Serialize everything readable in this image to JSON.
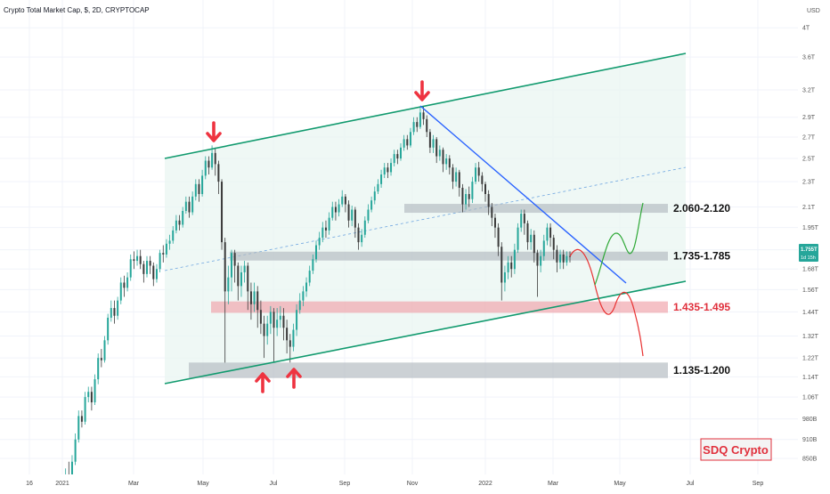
{
  "header": {
    "title": "Crypto Total Market Cap, $, 2D, CRYPTOCAP",
    "currency": "USD"
  },
  "chart_data": {
    "type": "candlestick",
    "title": "Crypto Total Market Cap, $, 2D, CRYPTOCAP",
    "y_scale": "log",
    "ylim": [
      0.76,
      4.2
    ],
    "y_unit": "T",
    "y_ticks": [
      {
        "label": "4T",
        "value": 4.0
      },
      {
        "label": "3.6T",
        "value": 3.6
      },
      {
        "label": "3.2T",
        "value": 3.2
      },
      {
        "label": "2.9T",
        "value": 2.9
      },
      {
        "label": "2.7T",
        "value": 2.7
      },
      {
        "label": "2.5T",
        "value": 2.5
      },
      {
        "label": "2.3T",
        "value": 2.3
      },
      {
        "label": "2.1T",
        "value": 2.1
      },
      {
        "label": "1.95T",
        "value": 1.95
      },
      {
        "label": "1.8T",
        "value": 1.8
      },
      {
        "label": "1.68T",
        "value": 1.68
      },
      {
        "label": "1.56T",
        "value": 1.56
      },
      {
        "label": "1.44T",
        "value": 1.44
      },
      {
        "label": "1.32T",
        "value": 1.32
      },
      {
        "label": "1.22T",
        "value": 1.22
      },
      {
        "label": "1.14T",
        "value": 1.14
      },
      {
        "label": "1.06T",
        "value": 1.06
      },
      {
        "label": "980B",
        "value": 0.98
      },
      {
        "label": "910B",
        "value": 0.91
      },
      {
        "label": "850B",
        "value": 0.85
      },
      {
        "label": "794B",
        "value": 0.794
      }
    ],
    "x_ticks": [
      "16",
      "2021",
      "Mar",
      "May",
      "Jul",
      "Sep",
      "Nov",
      "2022",
      "Mar",
      "May",
      "Jul",
      "Sep"
    ],
    "last_price": "1.755T",
    "countdown": "1d 15h",
    "zones": [
      {
        "label": "2.060-2.120",
        "low": 2.06,
        "high": 2.12,
        "color": "#b0b8bf",
        "label_color": "#111111"
      },
      {
        "label": "1.735-1.785",
        "low": 1.735,
        "high": 1.785,
        "color": "#b0b8bf",
        "label_color": "#111111"
      },
      {
        "label": "1.435-1.495",
        "low": 1.435,
        "high": 1.495,
        "color": "#f0a0a8",
        "label_color": "#e0303c"
      },
      {
        "label": "1.135-1.200",
        "low": 1.135,
        "high": 1.2,
        "color": "#b0b8bf",
        "label_color": "#111111"
      }
    ],
    "colors": {
      "up": "#26a69a",
      "down": "#3a3a3a",
      "channel": "#119a6e",
      "channel_fill": "#e9f5f2",
      "trendline": "#2962ff",
      "arrow": "#ee3340",
      "bull_path": "#2ea836",
      "bear_path": "#e83030",
      "price_badge": "#26a69a"
    },
    "candles": [
      [
        0.76,
        0.76,
        0.8,
        0.73
      ],
      [
        0.76,
        0.8,
        0.82,
        0.75
      ],
      [
        0.8,
        0.79,
        0.84,
        0.78
      ],
      [
        0.79,
        0.84,
        0.86,
        0.78
      ],
      [
        0.84,
        0.91,
        0.93,
        0.83
      ],
      [
        0.91,
        0.99,
        1.01,
        0.9
      ],
      [
        0.99,
        0.97,
        1.01,
        0.95
      ],
      [
        0.97,
        1.06,
        1.08,
        0.96
      ],
      [
        1.06,
        1.08,
        1.1,
        1.04
      ],
      [
        1.08,
        1.04,
        1.1,
        1.01
      ],
      [
        1.04,
        1.13,
        1.15,
        1.03
      ],
      [
        1.13,
        1.22,
        1.24,
        1.11
      ],
      [
        1.22,
        1.21,
        1.26,
        1.18
      ],
      [
        1.21,
        1.3,
        1.32,
        1.2
      ],
      [
        1.3,
        1.41,
        1.43,
        1.28
      ],
      [
        1.41,
        1.46,
        1.5,
        1.39
      ],
      [
        1.46,
        1.42,
        1.5,
        1.38
      ],
      [
        1.42,
        1.5,
        1.52,
        1.4
      ],
      [
        1.5,
        1.6,
        1.63,
        1.48
      ],
      [
        1.6,
        1.57,
        1.64,
        1.52
      ],
      [
        1.57,
        1.63,
        1.66,
        1.55
      ],
      [
        1.63,
        1.74,
        1.77,
        1.61
      ],
      [
        1.74,
        1.73,
        1.79,
        1.68
      ],
      [
        1.73,
        1.76,
        1.8,
        1.7
      ],
      [
        1.76,
        1.71,
        1.8,
        1.68
      ],
      [
        1.71,
        1.65,
        1.73,
        1.6
      ],
      [
        1.65,
        1.73,
        1.76,
        1.63
      ],
      [
        1.73,
        1.7,
        1.76,
        1.65
      ],
      [
        1.7,
        1.62,
        1.72,
        1.58
      ],
      [
        1.62,
        1.68,
        1.71,
        1.6
      ],
      [
        1.68,
        1.78,
        1.8,
        1.66
      ],
      [
        1.78,
        1.77,
        1.83,
        1.72
      ],
      [
        1.77,
        1.84,
        1.87,
        1.75
      ],
      [
        1.84,
        1.86,
        1.9,
        1.8
      ],
      [
        1.86,
        1.93,
        1.96,
        1.84
      ],
      [
        1.93,
        2.0,
        2.04,
        1.91
      ],
      [
        2.0,
        1.97,
        2.04,
        1.93
      ],
      [
        1.97,
        2.07,
        2.1,
        1.95
      ],
      [
        2.07,
        2.14,
        2.18,
        2.05
      ],
      [
        2.14,
        2.06,
        2.18,
        2.02
      ],
      [
        2.06,
        2.18,
        2.22,
        2.04
      ],
      [
        2.18,
        2.28,
        2.32,
        2.15
      ],
      [
        2.28,
        2.2,
        2.32,
        2.14
      ],
      [
        2.2,
        2.35,
        2.4,
        2.18
      ],
      [
        2.35,
        2.48,
        2.52,
        2.32
      ],
      [
        2.48,
        2.42,
        2.52,
        2.36
      ],
      [
        2.42,
        2.55,
        2.62,
        2.4
      ],
      [
        2.55,
        2.45,
        2.6,
        2.35
      ],
      [
        2.45,
        2.3,
        2.48,
        2.2
      ],
      [
        2.3,
        1.85,
        2.32,
        1.8
      ],
      [
        1.85,
        1.55,
        1.88,
        1.2
      ],
      [
        1.55,
        1.63,
        1.7,
        1.48
      ],
      [
        1.63,
        1.78,
        1.8,
        1.55
      ],
      [
        1.78,
        1.7,
        1.8,
        1.6
      ],
      [
        1.7,
        1.58,
        1.72,
        1.5
      ],
      [
        1.58,
        1.66,
        1.7,
        1.52
      ],
      [
        1.66,
        1.7,
        1.73,
        1.6
      ],
      [
        1.7,
        1.55,
        1.72,
        1.45
      ],
      [
        1.55,
        1.48,
        1.6,
        1.4
      ],
      [
        1.48,
        1.55,
        1.6,
        1.44
      ],
      [
        1.55,
        1.45,
        1.58,
        1.36
      ],
      [
        1.45,
        1.38,
        1.5,
        1.33
      ],
      [
        1.38,
        1.32,
        1.42,
        1.22
      ],
      [
        1.32,
        1.38,
        1.42,
        1.28
      ],
      [
        1.38,
        1.44,
        1.47,
        1.33
      ],
      [
        1.44,
        1.36,
        1.46,
        1.2
      ],
      [
        1.36,
        1.4,
        1.46,
        1.32
      ],
      [
        1.4,
        1.42,
        1.47,
        1.36
      ],
      [
        1.42,
        1.36,
        1.46,
        1.3
      ],
      [
        1.36,
        1.3,
        1.4,
        1.24
      ],
      [
        1.3,
        1.27,
        1.33,
        1.2
      ],
      [
        1.27,
        1.35,
        1.38,
        1.25
      ],
      [
        1.35,
        1.45,
        1.48,
        1.32
      ],
      [
        1.45,
        1.5,
        1.54,
        1.43
      ],
      [
        1.5,
        1.55,
        1.58,
        1.47
      ],
      [
        1.55,
        1.6,
        1.63,
        1.52
      ],
      [
        1.6,
        1.67,
        1.7,
        1.58
      ],
      [
        1.67,
        1.74,
        1.77,
        1.65
      ],
      [
        1.74,
        1.83,
        1.86,
        1.72
      ],
      [
        1.83,
        1.88,
        1.92,
        1.8
      ],
      [
        1.88,
        1.95,
        1.99,
        1.85
      ],
      [
        1.95,
        1.93,
        2.0,
        1.88
      ],
      [
        1.93,
        2.02,
        2.06,
        1.9
      ],
      [
        2.02,
        2.1,
        2.14,
        2.0
      ],
      [
        2.1,
        2.06,
        2.14,
        2.0
      ],
      [
        2.06,
        2.12,
        2.16,
        2.03
      ],
      [
        2.12,
        2.18,
        2.23,
        2.1
      ],
      [
        2.18,
        2.12,
        2.2,
        2.06
      ],
      [
        2.12,
        2.0,
        2.15,
        1.95
      ],
      [
        2.0,
        2.08,
        2.11,
        1.96
      ],
      [
        2.08,
        1.95,
        2.1,
        1.88
      ],
      [
        1.95,
        1.85,
        1.98,
        1.8
      ],
      [
        1.85,
        1.9,
        1.94,
        1.82
      ],
      [
        1.9,
        2.0,
        2.03,
        1.88
      ],
      [
        2.0,
        2.08,
        2.12,
        1.98
      ],
      [
        2.08,
        2.15,
        2.18,
        2.06
      ],
      [
        2.15,
        2.22,
        2.26,
        2.12
      ],
      [
        2.22,
        2.28,
        2.32,
        2.2
      ],
      [
        2.28,
        2.36,
        2.4,
        2.25
      ],
      [
        2.36,
        2.42,
        2.46,
        2.33
      ],
      [
        2.42,
        2.38,
        2.46,
        2.33
      ],
      [
        2.38,
        2.46,
        2.5,
        2.35
      ],
      [
        2.46,
        2.54,
        2.58,
        2.43
      ],
      [
        2.54,
        2.5,
        2.58,
        2.45
      ],
      [
        2.5,
        2.6,
        2.64,
        2.48
      ],
      [
        2.6,
        2.68,
        2.72,
        2.57
      ],
      [
        2.68,
        2.62,
        2.72,
        2.58
      ],
      [
        2.62,
        2.75,
        2.79,
        2.6
      ],
      [
        2.75,
        2.85,
        2.9,
        2.72
      ],
      [
        2.85,
        2.8,
        2.9,
        2.75
      ],
      [
        2.8,
        2.95,
        3.0,
        2.78
      ],
      [
        2.95,
        2.88,
        3.02,
        2.82
      ],
      [
        2.88,
        2.75,
        2.92,
        2.7
      ],
      [
        2.75,
        2.6,
        2.78,
        2.55
      ],
      [
        2.6,
        2.68,
        2.72,
        2.55
      ],
      [
        2.68,
        2.52,
        2.7,
        2.46
      ],
      [
        2.52,
        2.58,
        2.62,
        2.48
      ],
      [
        2.58,
        2.45,
        2.6,
        2.38
      ],
      [
        2.45,
        2.5,
        2.54,
        2.4
      ],
      [
        2.5,
        2.42,
        2.53,
        2.36
      ],
      [
        2.42,
        2.3,
        2.45,
        2.24
      ],
      [
        2.3,
        2.38,
        2.42,
        2.26
      ],
      [
        2.38,
        2.25,
        2.4,
        2.18
      ],
      [
        2.25,
        2.12,
        2.28,
        2.06
      ],
      [
        2.12,
        2.2,
        2.24,
        2.08
      ],
      [
        2.2,
        2.16,
        2.26,
        2.1
      ],
      [
        2.16,
        2.3,
        2.34,
        2.13
      ],
      [
        2.3,
        2.42,
        2.46,
        2.28
      ],
      [
        2.42,
        2.35,
        2.47,
        2.3
      ],
      [
        2.35,
        2.28,
        2.38,
        2.22
      ],
      [
        2.28,
        2.2,
        2.3,
        2.14
      ],
      [
        2.2,
        2.1,
        2.23,
        2.04
      ],
      [
        2.1,
        2.02,
        2.13,
        1.96
      ],
      [
        2.02,
        1.95,
        2.05,
        1.88
      ],
      [
        1.95,
        1.82,
        1.98,
        1.76
      ],
      [
        1.82,
        1.6,
        1.85,
        1.5
      ],
      [
        1.6,
        1.66,
        1.7,
        1.55
      ],
      [
        1.66,
        1.72,
        1.76,
        1.62
      ],
      [
        1.72,
        1.68,
        1.76,
        1.63
      ],
      [
        1.68,
        1.8,
        1.84,
        1.65
      ],
      [
        1.8,
        1.95,
        1.98,
        1.78
      ],
      [
        1.95,
        2.05,
        2.08,
        1.92
      ],
      [
        2.05,
        1.98,
        2.08,
        1.9
      ],
      [
        1.98,
        1.85,
        2.0,
        1.8
      ],
      [
        1.85,
        1.9,
        1.94,
        1.8
      ],
      [
        1.9,
        1.78,
        1.93,
        1.72
      ],
      [
        1.78,
        1.7,
        1.8,
        1.52
      ],
      [
        1.7,
        1.76,
        1.8,
        1.66
      ],
      [
        1.76,
        1.86,
        1.9,
        1.73
      ],
      [
        1.86,
        1.95,
        1.98,
        1.83
      ],
      [
        1.95,
        1.88,
        1.98,
        1.82
      ],
      [
        1.88,
        1.8,
        1.9,
        1.74
      ],
      [
        1.8,
        1.72,
        1.83,
        1.66
      ],
      [
        1.72,
        1.77,
        1.8,
        1.68
      ],
      [
        1.77,
        1.72,
        1.8,
        1.68
      ],
      [
        1.72,
        1.76,
        1.79,
        1.7
      ],
      [
        1.76,
        1.755,
        1.79,
        1.72
      ]
    ]
  },
  "watermark": {
    "text": "SDQ Crypto"
  }
}
